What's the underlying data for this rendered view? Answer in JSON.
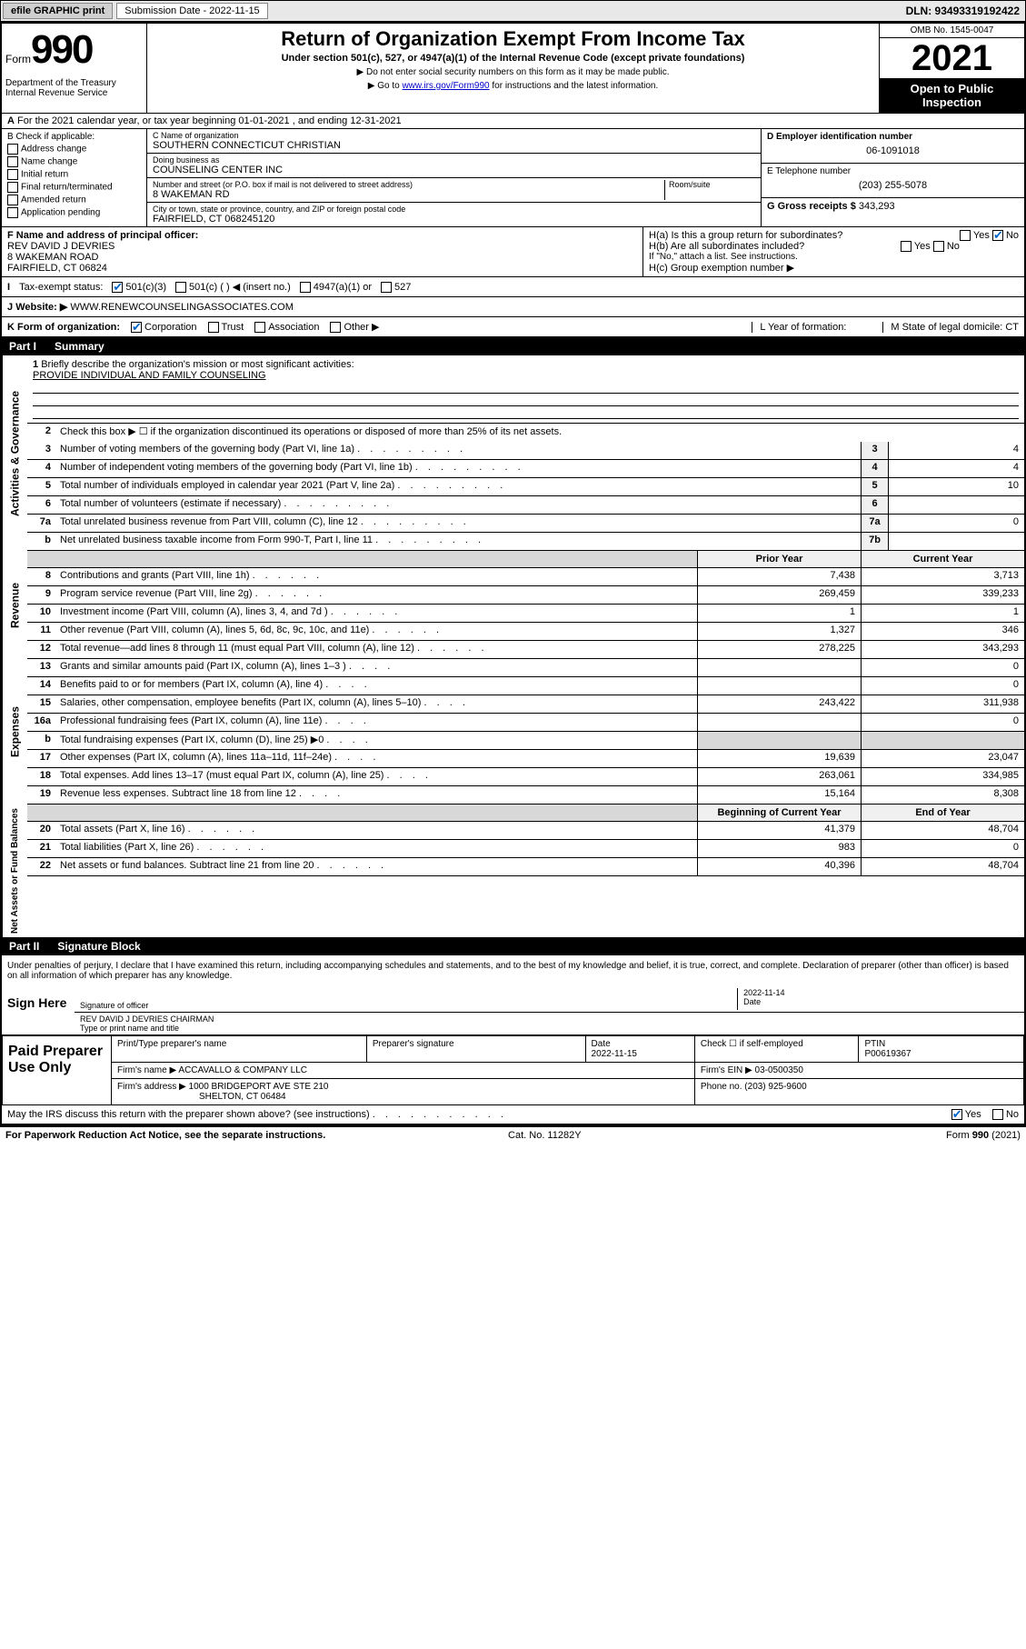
{
  "topbar": {
    "efile_label": "efile GRAPHIC print",
    "submission_label": "Submission Date - 2022-11-15",
    "dln_label": "DLN: 93493319192422"
  },
  "header": {
    "form_word": "Form",
    "form_number": "990",
    "dept": "Department of the Treasury\nInternal Revenue Service",
    "title": "Return of Organization Exempt From Income Tax",
    "subtitle": "Under section 501(c), 527, or 4947(a)(1) of the Internal Revenue Code (except private foundations)",
    "note1": "▶ Do not enter social security numbers on this form as it may be made public.",
    "note2_pre": "▶ Go to ",
    "note2_link": "www.irs.gov/Form990",
    "note2_post": " for instructions and the latest information.",
    "omb": "OMB No. 1545-0047",
    "year": "2021",
    "open_public": "Open to Public Inspection"
  },
  "row_a": {
    "label_a": "A",
    "text": "For the 2021 calendar year, or tax year beginning 01-01-2021    , and ending 12-31-2021"
  },
  "col_b": {
    "header": "B Check if applicable:",
    "items": [
      "Address change",
      "Name change",
      "Initial return",
      "Final return/terminated",
      "Amended return",
      "Application pending"
    ]
  },
  "col_mid": {
    "c_label": "C Name of organization",
    "c_val": "SOUTHERN CONNECTICUT CHRISTIAN",
    "dba_label": "Doing business as",
    "dba_val": "COUNSELING CENTER INC",
    "street_label": "Number and street (or P.O. box if mail is not delivered to street address)",
    "room_label": "Room/suite",
    "street_val": "8 WAKEMAN RD",
    "city_label": "City or town, state or province, country, and ZIP or foreign postal code",
    "city_val": "FAIRFIELD, CT  068245120"
  },
  "col_right_top": {
    "d_label": "D Employer identification number",
    "d_val": "06-1091018",
    "e_label": "E Telephone number",
    "e_val": "(203) 255-5078",
    "g_label": "G Gross receipts $",
    "g_val": "343,293"
  },
  "f_block": {
    "f_label": "F Name and address of principal officer:",
    "f_name": "REV DAVID J DEVRIES",
    "f_addr1": "8 WAKEMAN ROAD",
    "f_addr2": "FAIRFIELD, CT  06824",
    "ha_label": "H(a)  Is this a group return for subordinates?",
    "ha_yes": "Yes",
    "ha_no": "No",
    "hb_label": "H(b)  Are all subordinates included?",
    "hb_yes": "Yes",
    "hb_no": "No",
    "hb_note": "If \"No,\" attach a list. See instructions.",
    "hc_label": "H(c)  Group exemption number ▶"
  },
  "tax_row": {
    "i_label": "I",
    "tax_status_label": "Tax-exempt status:",
    "opt1": "501(c)(3)",
    "opt2": "501(c) (  ) ◀ (insert no.)",
    "opt3": "4947(a)(1) or",
    "opt4": "527"
  },
  "j_row": {
    "j_label": "J",
    "website_label": "Website: ▶",
    "website_val": "WWW.RENEWCOUNSELINGASSOCIATES.COM"
  },
  "k_row": {
    "k_label": "K Form of organization:",
    "opt1": "Corporation",
    "opt2": "Trust",
    "opt3": "Association",
    "opt4": "Other ▶",
    "l_label": "L Year of formation:",
    "m_label": "M State of legal domicile: CT"
  },
  "part1": {
    "header_part": "Part I",
    "header_title": "Summary",
    "sidetab_gov": "Activities & Governance",
    "sidetab_rev": "Revenue",
    "sidetab_exp": "Expenses",
    "sidetab_net": "Net Assets or Fund Balances",
    "line1_label": "1",
    "line1_desc": "Briefly describe the organization's mission or most significant activities:",
    "line1_val": "PROVIDE INDIVIDUAL AND FAMILY COUNSELING",
    "line2_label": "2",
    "line2_desc": "Check this box ▶ ☐ if the organization discontinued its operations or disposed of more than 25% of its net assets.",
    "lines_gov": [
      {
        "n": "3",
        "desc": "Number of voting members of the governing body (Part VI, line 1a)",
        "box": "3",
        "val": "4"
      },
      {
        "n": "4",
        "desc": "Number of independent voting members of the governing body (Part VI, line 1b)",
        "box": "4",
        "val": "4"
      },
      {
        "n": "5",
        "desc": "Total number of individuals employed in calendar year 2021 (Part V, line 2a)",
        "box": "5",
        "val": "10"
      },
      {
        "n": "6",
        "desc": "Total number of volunteers (estimate if necessary)",
        "box": "6",
        "val": ""
      },
      {
        "n": "7a",
        "desc": "Total unrelated business revenue from Part VIII, column (C), line 12",
        "box": "7a",
        "val": "0"
      },
      {
        "n": "b",
        "desc": "Net unrelated business taxable income from Form 990-T, Part I, line 11",
        "box": "7b",
        "val": ""
      }
    ],
    "hdr_prior": "Prior Year",
    "hdr_current": "Current Year",
    "lines_rev": [
      {
        "n": "8",
        "desc": "Contributions and grants (Part VIII, line 1h)",
        "v1": "7,438",
        "v2": "3,713"
      },
      {
        "n": "9",
        "desc": "Program service revenue (Part VIII, line 2g)",
        "v1": "269,459",
        "v2": "339,233"
      },
      {
        "n": "10",
        "desc": "Investment income (Part VIII, column (A), lines 3, 4, and 7d )",
        "v1": "1",
        "v2": "1"
      },
      {
        "n": "11",
        "desc": "Other revenue (Part VIII, column (A), lines 5, 6d, 8c, 9c, 10c, and 11e)",
        "v1": "1,327",
        "v2": "346"
      },
      {
        "n": "12",
        "desc": "Total revenue—add lines 8 through 11 (must equal Part VIII, column (A), line 12)",
        "v1": "278,225",
        "v2": "343,293"
      }
    ],
    "lines_exp": [
      {
        "n": "13",
        "desc": "Grants and similar amounts paid (Part IX, column (A), lines 1–3 )",
        "v1": "",
        "v2": "0"
      },
      {
        "n": "14",
        "desc": "Benefits paid to or for members (Part IX, column (A), line 4)",
        "v1": "",
        "v2": "0"
      },
      {
        "n": "15",
        "desc": "Salaries, other compensation, employee benefits (Part IX, column (A), lines 5–10)",
        "v1": "243,422",
        "v2": "311,938"
      },
      {
        "n": "16a",
        "desc": "Professional fundraising fees (Part IX, column (A), line 11e)",
        "v1": "",
        "v2": "0"
      },
      {
        "n": "b",
        "desc": "Total fundraising expenses (Part IX, column (D), line 25) ▶0",
        "v1": "SHADE",
        "v2": "SHADE"
      },
      {
        "n": "17",
        "desc": "Other expenses (Part IX, column (A), lines 11a–11d, 11f–24e)",
        "v1": "19,639",
        "v2": "23,047"
      },
      {
        "n": "18",
        "desc": "Total expenses. Add lines 13–17 (must equal Part IX, column (A), line 25)",
        "v1": "263,061",
        "v2": "334,985"
      },
      {
        "n": "19",
        "desc": "Revenue less expenses. Subtract line 18 from line 12",
        "v1": "15,164",
        "v2": "8,308"
      }
    ],
    "hdr_begin": "Beginning of Current Year",
    "hdr_end": "End of Year",
    "lines_net": [
      {
        "n": "20",
        "desc": "Total assets (Part X, line 16)",
        "v1": "41,379",
        "v2": "48,704"
      },
      {
        "n": "21",
        "desc": "Total liabilities (Part X, line 26)",
        "v1": "983",
        "v2": "0"
      },
      {
        "n": "22",
        "desc": "Net assets or fund balances. Subtract line 21 from line 20",
        "v1": "40,396",
        "v2": "48,704"
      }
    ]
  },
  "part2": {
    "header_part": "Part II",
    "header_title": "Signature Block",
    "penalties": "Under penalties of perjury, I declare that I have examined this return, including accompanying schedules and statements, and to the best of my knowledge and belief, it is true, correct, and complete. Declaration of preparer (other than officer) is based on all information of which preparer has any knowledge.",
    "sign_here": "Sign Here",
    "sig_officer_label": "Signature of officer",
    "sig_date": "2022-11-14",
    "date_label": "Date",
    "officer_name": "REV DAVID J DEVRIES  CHAIRMAN",
    "officer_name_label": "Type or print name and title",
    "paid_label": "Paid Preparer Use Only",
    "prep_cols": {
      "c1": "Print/Type preparer's name",
      "c2": "Preparer's signature",
      "c3": "Date",
      "c3v": "2022-11-15",
      "c4": "Check ☐ if self-employed",
      "c5": "PTIN",
      "c5v": "P00619367"
    },
    "firm_name_label": "Firm's name    ▶",
    "firm_name": "ACCAVALLO & COMPANY LLC",
    "firm_ein_label": "Firm's EIN ▶",
    "firm_ein": "03-0500350",
    "firm_addr_label": "Firm's address ▶",
    "firm_addr": "1000 BRIDGEPORT AVE STE 210",
    "firm_addr2": "SHELTON, CT  06484",
    "firm_phone_label": "Phone no.",
    "firm_phone": "(203) 925-9600",
    "may_discuss": "May the IRS discuss this return with the preparer shown above? (see instructions)",
    "yes": "Yes",
    "no": "No"
  },
  "footer": {
    "left": "For Paperwork Reduction Act Notice, see the separate instructions.",
    "mid": "Cat. No. 11282Y",
    "right": "Form 990 (2021)"
  }
}
